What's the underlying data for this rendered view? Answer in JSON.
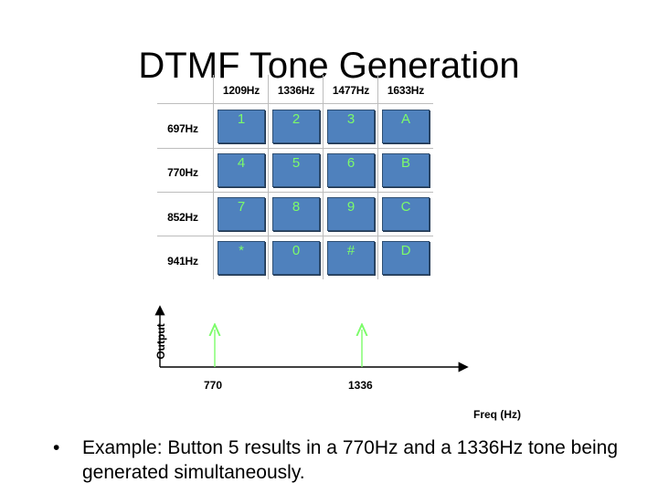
{
  "title": "DTMF Tone Generation",
  "keypad": {
    "columns": [
      "1209Hz",
      "1336Hz",
      "1477Hz",
      "1633Hz"
    ],
    "rows": [
      "697Hz",
      "770Hz",
      "852Hz",
      "941Hz"
    ],
    "keys": [
      [
        "1",
        "2",
        "3",
        "A"
      ],
      [
        "4",
        "5",
        "6",
        "B"
      ],
      [
        "7",
        "8",
        "9",
        "C"
      ],
      [
        "*",
        "0",
        "#",
        "D"
      ]
    ],
    "key_color": "#4f81bd",
    "key_text_color": "#7cfc6a"
  },
  "plot": {
    "ylabel": "Output",
    "xlabel": "Freq (Hz)",
    "tones": [
      "770",
      "1336"
    ],
    "arrow_color": "#7cfc6a"
  },
  "bullet": {
    "symbol": "•",
    "text": "Example: Button 5 results in a 770Hz and a 1336Hz tone being generated simultaneously."
  }
}
